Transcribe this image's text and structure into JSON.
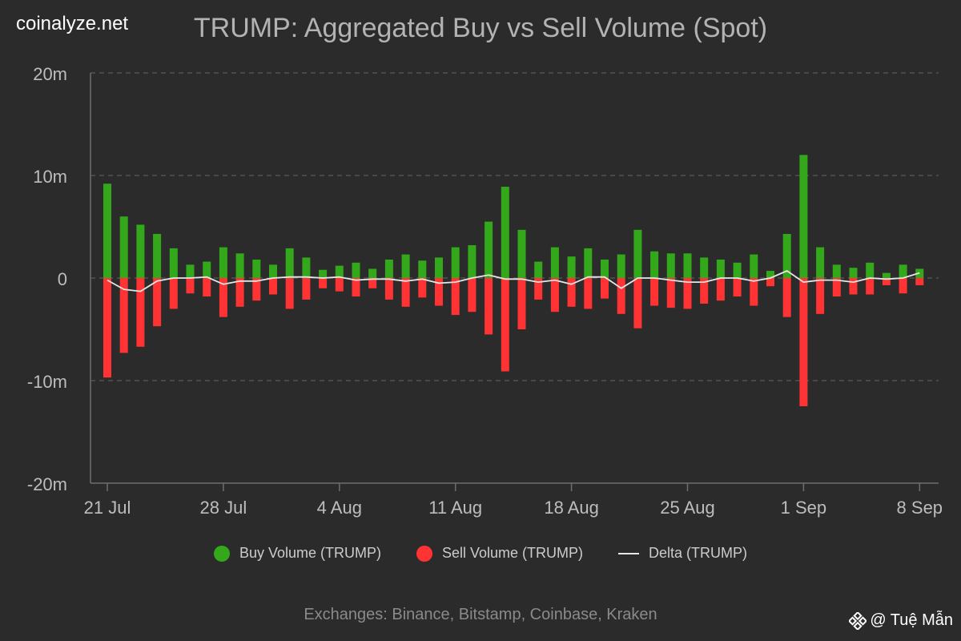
{
  "site": "coinalyze.net",
  "footer": "Exchanges: Binance, Bitstamp, Coinbase, Kraken",
  "watermark": {
    "text": "@ Tuệ Mẫn",
    "icon": "binance-logo-icon"
  },
  "legend": {
    "buy": "Buy Volume (TRUMP)",
    "sell": "Sell Volume (TRUMP)",
    "delta": "Delta (TRUMP)"
  },
  "colors": {
    "buy": "#33a81a",
    "sell": "#ff3333",
    "delta": "#e6e6e6",
    "grid": "#5a5a5a",
    "axis": "#bdbdbd"
  },
  "chart_data": {
    "type": "bar",
    "title": "TRUMP: Aggregated Buy vs Sell Volume (Spot)",
    "ylim": [
      -20,
      20
    ],
    "y_ticks": [
      20,
      10,
      0,
      -10,
      -20
    ],
    "y_tick_labels": [
      "20m",
      "10m",
      "0",
      "-10m",
      "-20m"
    ],
    "x_tick_labels": [
      "21 Jul",
      "28 Jul",
      "4 Aug",
      "11 Aug",
      "18 Aug",
      "25 Aug",
      "1 Sep",
      "8 Sep"
    ],
    "x_tick_day_index": [
      0,
      7,
      14,
      21,
      28,
      35,
      42,
      49
    ],
    "grid": true,
    "legend_position": "bottom",
    "categories": [
      "21 Jul",
      "22 Jul",
      "23 Jul",
      "24 Jul",
      "25 Jul",
      "26 Jul",
      "27 Jul",
      "28 Jul",
      "29 Jul",
      "30 Jul",
      "31 Jul",
      "1 Aug",
      "2 Aug",
      "3 Aug",
      "4 Aug",
      "5 Aug",
      "6 Aug",
      "7 Aug",
      "8 Aug",
      "9 Aug",
      "10 Aug",
      "11 Aug",
      "12 Aug",
      "13 Aug",
      "14 Aug",
      "15 Aug",
      "16 Aug",
      "17 Aug",
      "18 Aug",
      "19 Aug",
      "20 Aug",
      "21 Aug",
      "22 Aug",
      "23 Aug",
      "24 Aug",
      "25 Aug",
      "26 Aug",
      "27 Aug",
      "28 Aug",
      "29 Aug",
      "30 Aug",
      "31 Aug",
      "1 Sep",
      "2 Sep",
      "3 Sep",
      "4 Sep",
      "5 Sep",
      "6 Sep",
      "7 Sep",
      "8 Sep"
    ],
    "series": [
      {
        "name": "Buy Volume (TRUMP)",
        "values": [
          9.2,
          6.0,
          5.2,
          4.3,
          2.9,
          1.3,
          1.6,
          3.0,
          2.4,
          1.8,
          1.3,
          2.9,
          2.0,
          0.8,
          1.2,
          1.5,
          0.9,
          1.8,
          2.3,
          1.7,
          2.0,
          3.0,
          3.2,
          5.5,
          8.9,
          4.7,
          1.6,
          3.0,
          2.1,
          2.9,
          1.8,
          2.3,
          4.7,
          2.6,
          2.4,
          2.4,
          2.0,
          1.8,
          1.5,
          2.3,
          0.7,
          4.3,
          12.0,
          3.0,
          1.3,
          1.0,
          1.5,
          0.5,
          1.3,
          0.9
        ]
      },
      {
        "name": "Sell Volume (TRUMP)",
        "values": [
          -9.7,
          -7.3,
          -6.7,
          -4.7,
          -3.0,
          -1.5,
          -1.8,
          -3.8,
          -2.8,
          -2.2,
          -1.6,
          -3.0,
          -2.1,
          -1.0,
          -1.3,
          -1.8,
          -1.0,
          -2.1,
          -2.8,
          -1.9,
          -2.7,
          -3.6,
          -3.3,
          -5.5,
          -9.1,
          -5.0,
          -2.1,
          -3.3,
          -2.8,
          -3.0,
          -2.0,
          -3.5,
          -4.9,
          -2.7,
          -2.9,
          -3.0,
          -2.5,
          -2.2,
          -1.8,
          -2.7,
          -0.8,
          -3.8,
          -12.5,
          -3.5,
          -1.8,
          -1.6,
          -1.6,
          -0.7,
          -1.5,
          -0.7
        ]
      },
      {
        "name": "Delta (TRUMP)",
        "values": [
          -0.2,
          -1.1,
          -1.3,
          -0.3,
          0.0,
          0.0,
          0.1,
          -0.6,
          -0.3,
          -0.3,
          0.0,
          0.1,
          0.1,
          0.0,
          0.1,
          -0.2,
          -0.1,
          -0.1,
          -0.3,
          -0.1,
          -0.5,
          -0.4,
          0.0,
          0.3,
          -0.1,
          -0.1,
          -0.4,
          -0.2,
          -0.6,
          0.1,
          0.1,
          -1.0,
          0.0,
          0.0,
          -0.2,
          -0.4,
          -0.4,
          0.0,
          0.0,
          -0.3,
          0.0,
          0.7,
          -0.4,
          -0.2,
          -0.2,
          -0.4,
          0.0,
          -0.1,
          0.0,
          0.5
        ]
      }
    ]
  }
}
